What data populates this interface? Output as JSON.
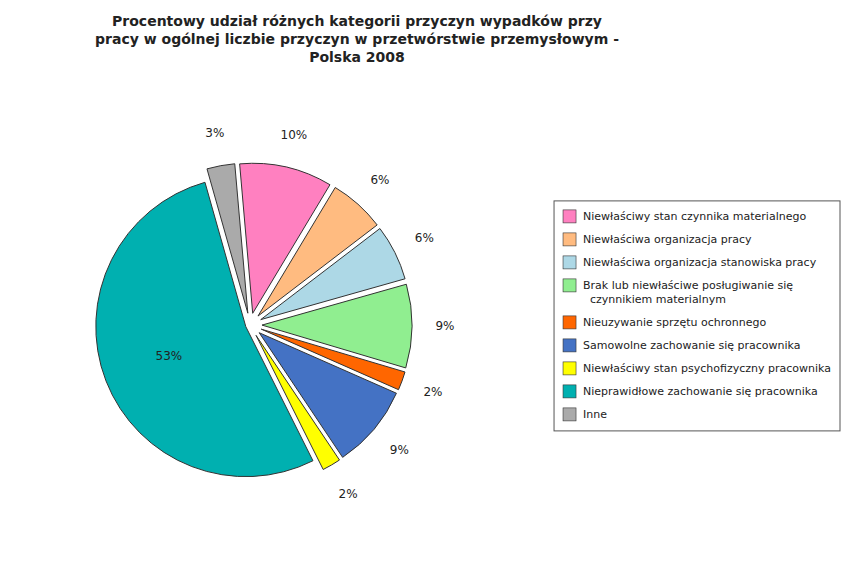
{
  "chart_data": {
    "type": "pie",
    "title": "Procentowy udział różnych kategorii przyczyn wypadków przy\npracy w ogólnej liczbie przyczyn w przetwórstwie przemysłowym -\nPolska 2008",
    "categories": [
      "Niewłaściwy stan czynnika materialnego",
      "Niewłaściwa organizacja pracy",
      "Niewłaściwa organizacja stanowiska pracy",
      "Brak lub niewłaściwe posługiwanie się\n  czynnikiem materialnym",
      "Nieuzywanie sprzętu ochronnego",
      "Samowolne zachowanie się pracownika",
      "Niewłaściwy stan psychofizyczny pracownika",
      "Nieprawidłowe zachowanie się pracownika",
      "Inne"
    ],
    "values": [
      10,
      6,
      6,
      9,
      2,
      9,
      2,
      53,
      3
    ],
    "value_labels": [
      "10%",
      "6%",
      "6%",
      "9%",
      "2%",
      "9%",
      "2%",
      "53%",
      "3%"
    ],
    "colors": [
      "#FF80C0",
      "#FFBB80",
      "#ADD8E6",
      "#90EE90",
      "#FF6600",
      "#4472C4",
      "#FFFF00",
      "#00B0B0",
      "#AAAAAA"
    ],
    "data_labels": true,
    "legend": "right"
  }
}
